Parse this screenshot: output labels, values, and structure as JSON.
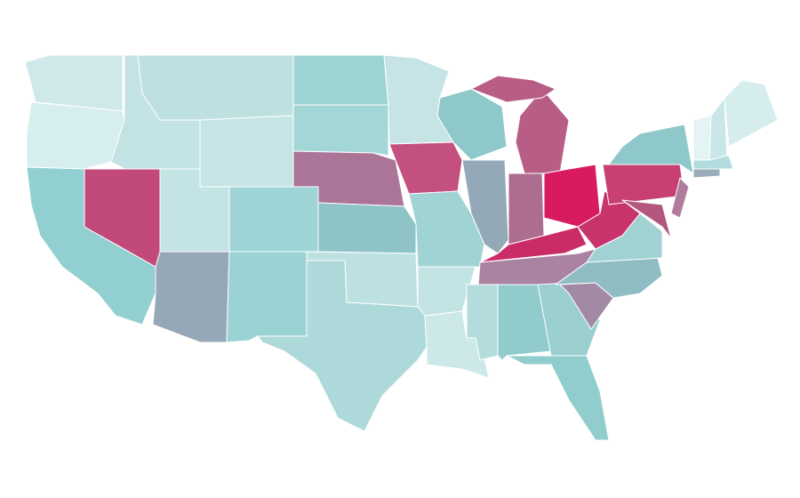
{
  "map": {
    "regions": [
      {
        "color": "#cfe9ea"
      },
      {
        "color": "#d7eeee"
      },
      {
        "color": "#92cfd0"
      },
      {
        "color": "#c14a7b"
      },
      {
        "color": "#c2e2e3"
      },
      {
        "color": "#bfe0e1"
      },
      {
        "color": "#c6e4e5"
      },
      {
        "color": "#c4e3e4"
      },
      {
        "color": "#9ed4d5"
      },
      {
        "color": "#96a8b8"
      },
      {
        "color": "#9bd2d3"
      },
      {
        "color": "#9ed3d4"
      },
      {
        "color": "#a3d6d7"
      },
      {
        "color": "#ab7598"
      },
      {
        "color": "#8ec3c7"
      },
      {
        "color": "#bde0e1"
      },
      {
        "color": "#aed9da"
      },
      {
        "color": "#c6e4e5"
      },
      {
        "color": "#c4507f"
      },
      {
        "color": "#a0d3d4"
      },
      {
        "color": "#c4e3e4"
      },
      {
        "color": "#cce8e9"
      },
      {
        "color": "#8ec8ca"
      },
      {
        "color": "#94a9b7"
      },
      {
        "color": "#b85d85"
      },
      {
        "color": "#b85d85"
      },
      {
        "color": "#ad6d91"
      },
      {
        "color": "#d81b60"
      },
      {
        "color": "#c92c66"
      },
      {
        "color": "#aa82a2"
      },
      {
        "color": "#b4dcdd"
      },
      {
        "color": "#92cbcc"
      },
      {
        "color": "#9bcfd0"
      },
      {
        "color": "#92cdce"
      },
      {
        "color": "#a28aa4"
      },
      {
        "color": "#90bcc4"
      },
      {
        "color": "#a0d2d3"
      },
      {
        "color": "#c9336b"
      },
      {
        "color": "#c83f72"
      },
      {
        "color": "#8ec8ca"
      },
      {
        "color": "#b4577f"
      },
      {
        "color": "#b07c9d"
      },
      {
        "color": "#98adb8"
      },
      {
        "color": "#b2dcdd"
      },
      {
        "color": "#e4f3f3"
      },
      {
        "color": "#c9e7e8"
      },
      {
        "color": "#d6eded"
      }
    ]
  }
}
